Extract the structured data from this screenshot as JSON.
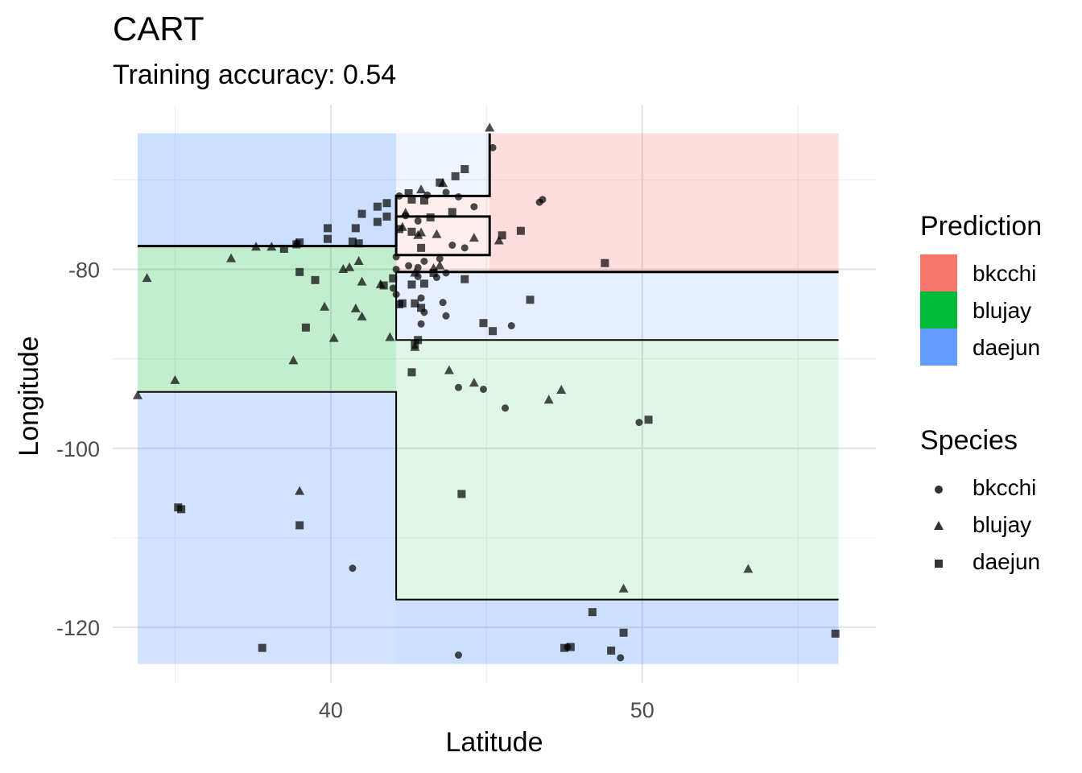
{
  "chart_data": {
    "type": "scatter",
    "title": "CART",
    "subtitle": "Training accuracy: 0.54",
    "xlabel": "Latitude",
    "ylabel": "Longitude",
    "xlim": [
      33,
      57.5
    ],
    "ylim": [
      -126.2,
      -61.6
    ],
    "x_ticks": [
      {
        "value": 40,
        "label": "40"
      },
      {
        "value": 50,
        "label": "50"
      }
    ],
    "y_ticks": [
      {
        "value": -80,
        "label": "-80"
      },
      {
        "value": -100,
        "label": "-100"
      },
      {
        "value": -120,
        "label": "-120"
      }
    ],
    "grid": true,
    "legend_position": "right",
    "prediction_legend": {
      "title": "Prediction",
      "entries": [
        {
          "label": "bkcchi",
          "color": "#F8766D"
        },
        {
          "label": "blujay",
          "color": "#00BA38"
        },
        {
          "label": "daejun",
          "color": "#619CFF"
        }
      ]
    },
    "species_legend": {
      "title": "Species",
      "entries": [
        {
          "label": "bkcchi",
          "shape": "circle"
        },
        {
          "label": "blujay",
          "shape": "triangle"
        },
        {
          "label": "daejun",
          "shape": "square"
        }
      ]
    },
    "regions": [
      {
        "x": [
          33.8,
          42.1
        ],
        "y": [
          -77.4,
          -64.8
        ],
        "class": "daejun",
        "alpha": 0.32
      },
      {
        "x": [
          42.1,
          45.1
        ],
        "y": [
          -71.8,
          -64.8
        ],
        "class": "daejun",
        "alpha": 0.1
      },
      {
        "x": [
          45.1,
          56.3
        ],
        "y": [
          -80.3,
          -64.8
        ],
        "class": "bkcchi",
        "alpha": 0.24
      },
      {
        "x": [
          42.1,
          45.1
        ],
        "y": [
          -80.3,
          -71.8
        ],
        "class": "bkcchi",
        "alpha": 0.12
      },
      {
        "x": [
          33.8,
          42.1
        ],
        "y": [
          -93.7,
          -77.4
        ],
        "class": "blujay",
        "alpha": 0.24
      },
      {
        "x": [
          42.1,
          56.3
        ],
        "y": [
          -87.9,
          -80.3
        ],
        "class": "daejun",
        "alpha": 0.16
      },
      {
        "x": [
          42.1,
          56.3
        ],
        "y": [
          -116.9,
          -87.9
        ],
        "class": "blujay",
        "alpha": 0.12
      },
      {
        "x": [
          33.8,
          42.1
        ],
        "y": [
          -124.1,
          -93.7
        ],
        "class": "daejun",
        "alpha": 0.28
      },
      {
        "x": [
          42.1,
          56.3
        ],
        "y": [
          -124.1,
          -116.9
        ],
        "class": "daejun",
        "alpha": 0.32
      }
    ],
    "boundaries": [
      {
        "width": 1.5,
        "points": [
          [
            33.8,
            -77.4
          ],
          [
            42.1,
            -77.4
          ],
          [
            42.1,
            -71.8
          ],
          [
            45.1,
            -71.8
          ],
          [
            45.1,
            -64.8
          ]
        ]
      },
      {
        "width": 1.5,
        "points": [
          [
            42.1,
            -80.3
          ],
          [
            56.3,
            -80.3
          ]
        ]
      },
      {
        "width": 1.5,
        "points": [
          [
            42.1,
            -74.1
          ],
          [
            45.1,
            -74.1
          ],
          [
            45.1,
            -78.4
          ],
          [
            42.1,
            -78.4
          ],
          [
            42.1,
            -74.1
          ]
        ]
      },
      {
        "width": 1.0,
        "points": [
          [
            33.8,
            -93.7
          ],
          [
            42.1,
            -93.7
          ],
          [
            42.1,
            -116.9
          ],
          [
            56.3,
            -116.9
          ]
        ]
      },
      {
        "width": 1.0,
        "points": [
          [
            42.1,
            -80.3
          ],
          [
            42.1,
            -87.9
          ],
          [
            56.3,
            -87.9
          ]
        ]
      }
    ],
    "series": [
      {
        "name": "bkcchi",
        "shape": "circle",
        "points": [
          [
            45.2,
            -66.4
          ],
          [
            46.8,
            -72.2
          ],
          [
            46.7,
            -72.5
          ],
          [
            42.2,
            -71.8
          ],
          [
            43.1,
            -71.7
          ],
          [
            43.7,
            -71.4
          ],
          [
            44.1,
            -71.9
          ],
          [
            44.6,
            -73.0
          ],
          [
            42.4,
            -74.0
          ],
          [
            42.8,
            -74.6
          ],
          [
            43.9,
            -77.3
          ],
          [
            44.3,
            -77.6
          ],
          [
            42.1,
            -78.6
          ],
          [
            43.5,
            -78.8
          ],
          [
            43.0,
            -79.1
          ],
          [
            42.8,
            -79.8
          ],
          [
            42.5,
            -79.6
          ],
          [
            42.1,
            -80.0
          ],
          [
            43.7,
            -80.4
          ],
          [
            43.4,
            -80.9
          ],
          [
            42.8,
            -80.8
          ],
          [
            42.0,
            -82.1
          ],
          [
            42.1,
            -82.8
          ],
          [
            42.9,
            -83.2
          ],
          [
            43.6,
            -83.7
          ],
          [
            43.0,
            -84.8
          ],
          [
            42.9,
            -86.1
          ],
          [
            43.7,
            -85.2
          ],
          [
            45.8,
            -86.3
          ],
          [
            44.1,
            -93.2
          ],
          [
            44.9,
            -93.4
          ],
          [
            45.6,
            -95.5
          ],
          [
            49.9,
            -97.1
          ],
          [
            40.7,
            -113.4
          ],
          [
            44.1,
            -123.1
          ],
          [
            47.6,
            -122.2
          ],
          [
            49.3,
            -123.4
          ]
        ]
      },
      {
        "name": "blujay",
        "shape": "triangle",
        "points": [
          [
            45.1,
            -64.2
          ],
          [
            43.6,
            -70.4
          ],
          [
            42.9,
            -71.1
          ],
          [
            42.4,
            -73.7
          ],
          [
            42.9,
            -75.9
          ],
          [
            42.3,
            -75.3
          ],
          [
            42.8,
            -76.2
          ],
          [
            43.4,
            -76.1
          ],
          [
            44.6,
            -76.5
          ],
          [
            45.4,
            -76.8
          ],
          [
            43.5,
            -79.6
          ],
          [
            43.3,
            -79.9
          ],
          [
            42.7,
            -80.4
          ],
          [
            37.6,
            -77.5
          ],
          [
            38.1,
            -77.5
          ],
          [
            38.9,
            -77.1
          ],
          [
            36.8,
            -78.8
          ],
          [
            40.4,
            -80.0
          ],
          [
            40.6,
            -79.8
          ],
          [
            40.9,
            -79.1
          ],
          [
            41.0,
            -81.4
          ],
          [
            41.6,
            -81.7
          ],
          [
            39.8,
            -84.2
          ],
          [
            40.8,
            -84.4
          ],
          [
            34.1,
            -81.0
          ],
          [
            41.0,
            -85.3
          ],
          [
            40.1,
            -87.7
          ],
          [
            41.9,
            -87.6
          ],
          [
            42.7,
            -88.7
          ],
          [
            38.8,
            -90.2
          ],
          [
            43.8,
            -91.3
          ],
          [
            35.0,
            -92.4
          ],
          [
            33.8,
            -94.1
          ],
          [
            44.6,
            -92.7
          ],
          [
            47.4,
            -93.5
          ],
          [
            47.0,
            -94.6
          ],
          [
            39.0,
            -104.8
          ],
          [
            53.4,
            -113.5
          ],
          [
            49.4,
            -115.7
          ]
        ]
      },
      {
        "name": "daejun",
        "shape": "square",
        "points": [
          [
            44.3,
            -68.8
          ],
          [
            44.0,
            -69.6
          ],
          [
            43.5,
            -70.3
          ],
          [
            42.5,
            -71.5
          ],
          [
            42.6,
            -72.2
          ],
          [
            43.0,
            -72.3
          ],
          [
            41.8,
            -72.6
          ],
          [
            41.0,
            -73.8
          ],
          [
            41.5,
            -73.0
          ],
          [
            43.2,
            -74.2
          ],
          [
            43.9,
            -73.6
          ],
          [
            41.8,
            -74.1
          ],
          [
            41.5,
            -74.7
          ],
          [
            42.2,
            -75.5
          ],
          [
            42.6,
            -75.8
          ],
          [
            40.8,
            -75.4
          ],
          [
            39.9,
            -76.6
          ],
          [
            39.9,
            -75.4
          ],
          [
            40.7,
            -76.9
          ],
          [
            40.9,
            -77.1
          ],
          [
            46.1,
            -75.7
          ],
          [
            45.5,
            -76.2
          ],
          [
            42.9,
            -77.6
          ],
          [
            38.5,
            -77.7
          ],
          [
            38.9,
            -77.2
          ],
          [
            39.0,
            -77.0
          ],
          [
            48.8,
            -79.3
          ],
          [
            39.0,
            -80.3
          ],
          [
            39.5,
            -81.2
          ],
          [
            42.0,
            -81.0
          ],
          [
            44.3,
            -81.1
          ],
          [
            43.3,
            -80.4
          ],
          [
            43.0,
            -81.6
          ],
          [
            42.6,
            -81.7
          ],
          [
            41.7,
            -81.8
          ],
          [
            42.2,
            -83.9
          ],
          [
            42.7,
            -83.8
          ],
          [
            42.3,
            -83.8
          ],
          [
            42.9,
            -84.3
          ],
          [
            46.4,
            -83.4
          ],
          [
            44.9,
            -86.0
          ],
          [
            45.2,
            -86.9
          ],
          [
            42.8,
            -87.9
          ],
          [
            39.2,
            -86.5
          ],
          [
            42.7,
            -88.4
          ],
          [
            42.6,
            -91.5
          ],
          [
            50.2,
            -96.8
          ],
          [
            35.1,
            -106.6
          ],
          [
            35.2,
            -106.8
          ],
          [
            39.0,
            -108.6
          ],
          [
            44.2,
            -105.1
          ],
          [
            37.8,
            -122.3
          ],
          [
            48.4,
            -118.3
          ],
          [
            47.7,
            -122.2
          ],
          [
            47.5,
            -122.3
          ],
          [
            49.0,
            -122.6
          ],
          [
            49.4,
            -120.6
          ],
          [
            56.2,
            -120.7
          ]
        ]
      }
    ]
  }
}
